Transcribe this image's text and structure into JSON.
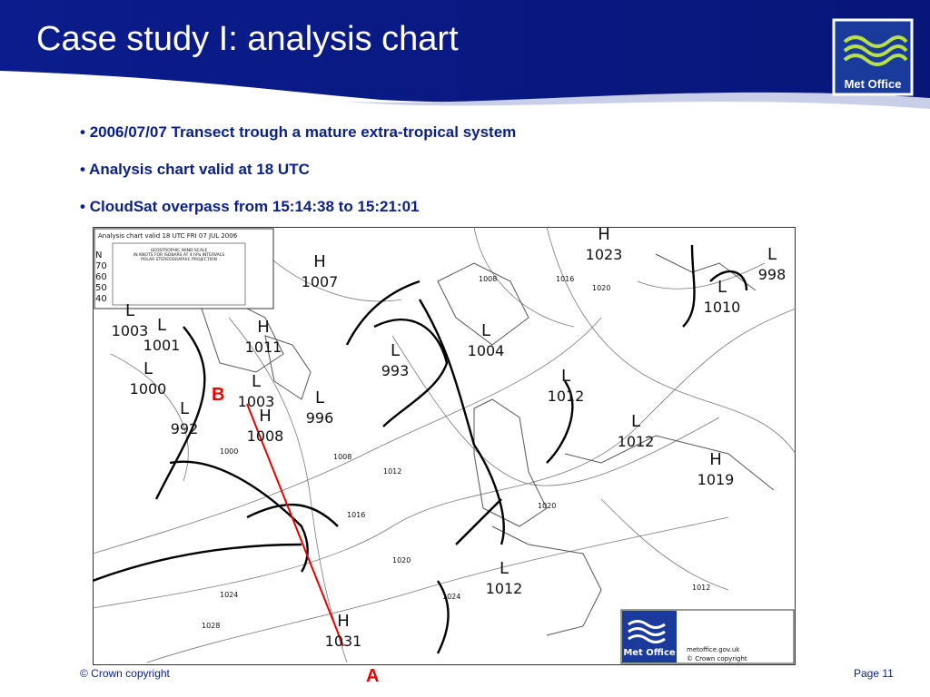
{
  "header": {
    "title": "Case study I: analysis chart",
    "logo": "Met Office"
  },
  "bullets": [
    "2006/07/07 Transect trough a mature extra-tropical system",
    "Analysis chart valid at 18 UTC",
    "CloudSat overpass from 15:14:38 to 15:21:01"
  ],
  "map": {
    "header": "Analysis chart valid 18 UTC FRI 07 JUL 2006",
    "scale_title": [
      "GEOSTROPHIC WIND SCALE",
      "IN KNOTS FOR ISOBARS AT 4 hPa INTERVALS",
      "POLAR STEREOGRAPHIC PROJECTION"
    ],
    "scale_labels": [
      "N",
      "70",
      "60",
      "50",
      "40"
    ],
    "centres": [
      {
        "type": "H",
        "value": "1023"
      },
      {
        "type": "L",
        "value": "998"
      },
      {
        "type": "L",
        "value": "1010"
      },
      {
        "type": "H",
        "value": "1007"
      },
      {
        "type": "L",
        "value": "1003"
      },
      {
        "type": "L",
        "value": "1001"
      },
      {
        "type": "H",
        "value": "1011"
      },
      {
        "type": "L",
        "value": "1000"
      },
      {
        "type": "L",
        "value": "993"
      },
      {
        "type": "L",
        "value": "1004"
      },
      {
        "type": "L",
        "value": "1012"
      },
      {
        "type": "L",
        "value": "1003"
      },
      {
        "type": "L",
        "value": "996"
      },
      {
        "type": "L",
        "value": "992"
      },
      {
        "type": "H",
        "value": "1008"
      },
      {
        "type": "L",
        "value": "1012"
      },
      {
        "type": "H",
        "value": "1019"
      },
      {
        "type": "L",
        "value": "1012"
      },
      {
        "type": "H",
        "value": "1031"
      }
    ],
    "isobar_labels": [
      "1016",
      "1020",
      "1008",
      "1000",
      "1012",
      "1016",
      "1020",
      "1024",
      "1028",
      "1008",
      "1020",
      "1024",
      "1012"
    ],
    "transect": {
      "start": "B",
      "end": "A"
    },
    "logo": "Met Office",
    "logo_text": [
      "metoffice.gov.uk",
      "© Crown copyright"
    ]
  },
  "footer": {
    "copyright": "© Crown copyright",
    "page": "Page 11"
  }
}
